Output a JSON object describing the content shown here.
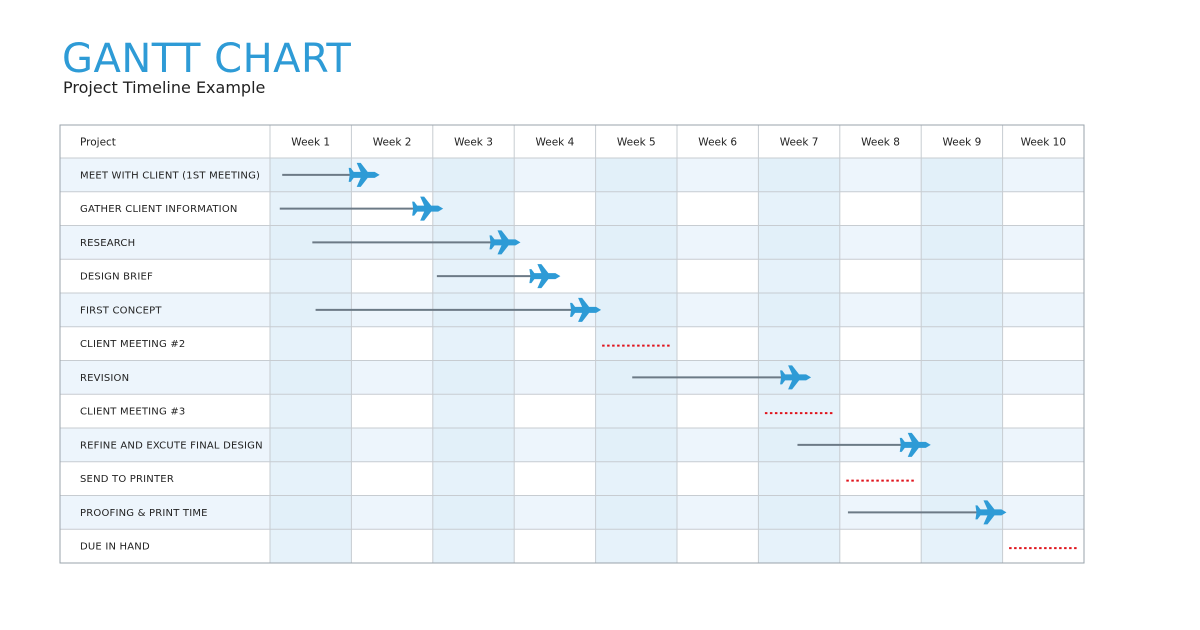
{
  "page": {
    "title": "GANTT CHART",
    "subtitle": "Project Timeline Example"
  },
  "colors": {
    "title": "#2e9bd6",
    "arrow": "#2e9bd6",
    "bar": "#6c7a86",
    "milestone": "#e0141c",
    "row_alt": "#edf5fc",
    "col_shade": "#ddedf8",
    "grid": "#c7ccd1"
  },
  "chart_data": {
    "type": "gantt",
    "first_column_header": "Project",
    "columns": [
      "Week 1",
      "Week 2",
      "Week 3",
      "Week 4",
      "Week 5",
      "Week 6",
      "Week 7",
      "Week 8",
      "Week 9",
      "Week 10"
    ],
    "tasks": [
      {
        "name": "MEET WITH CLIENT (1ST MEETING)",
        "kind": "bar",
        "start": 0.15,
        "end": 1.2
      },
      {
        "name": "GATHER CLIENT INFORMATION",
        "kind": "bar",
        "start": 0.12,
        "end": 1.98
      },
      {
        "name": "RESEARCH",
        "kind": "bar",
        "start": 0.52,
        "end": 2.93
      },
      {
        "name": "DESIGN BRIEF",
        "kind": "bar",
        "start": 2.05,
        "end": 3.42
      },
      {
        "name": "FIRST CONCEPT",
        "kind": "bar",
        "start": 0.56,
        "end": 3.92
      },
      {
        "name": "CLIENT MEETING #2",
        "kind": "milestone",
        "start": 4.08,
        "end": 4.92
      },
      {
        "name": "REVISION",
        "kind": "bar",
        "start": 4.45,
        "end": 6.5
      },
      {
        "name": "CLIENT MEETING #3",
        "kind": "milestone",
        "start": 6.08,
        "end": 6.92
      },
      {
        "name": "REFINE AND EXCUTE FINAL DESIGN",
        "kind": "bar",
        "start": 6.48,
        "end": 7.97
      },
      {
        "name": "SEND TO PRINTER",
        "kind": "milestone",
        "start": 7.08,
        "end": 7.92
      },
      {
        "name": "PROOFING & PRINT TIME",
        "kind": "bar",
        "start": 7.1,
        "end": 8.9
      },
      {
        "name": "DUE IN HAND",
        "kind": "milestone",
        "start": 9.08,
        "end": 9.92
      }
    ]
  }
}
